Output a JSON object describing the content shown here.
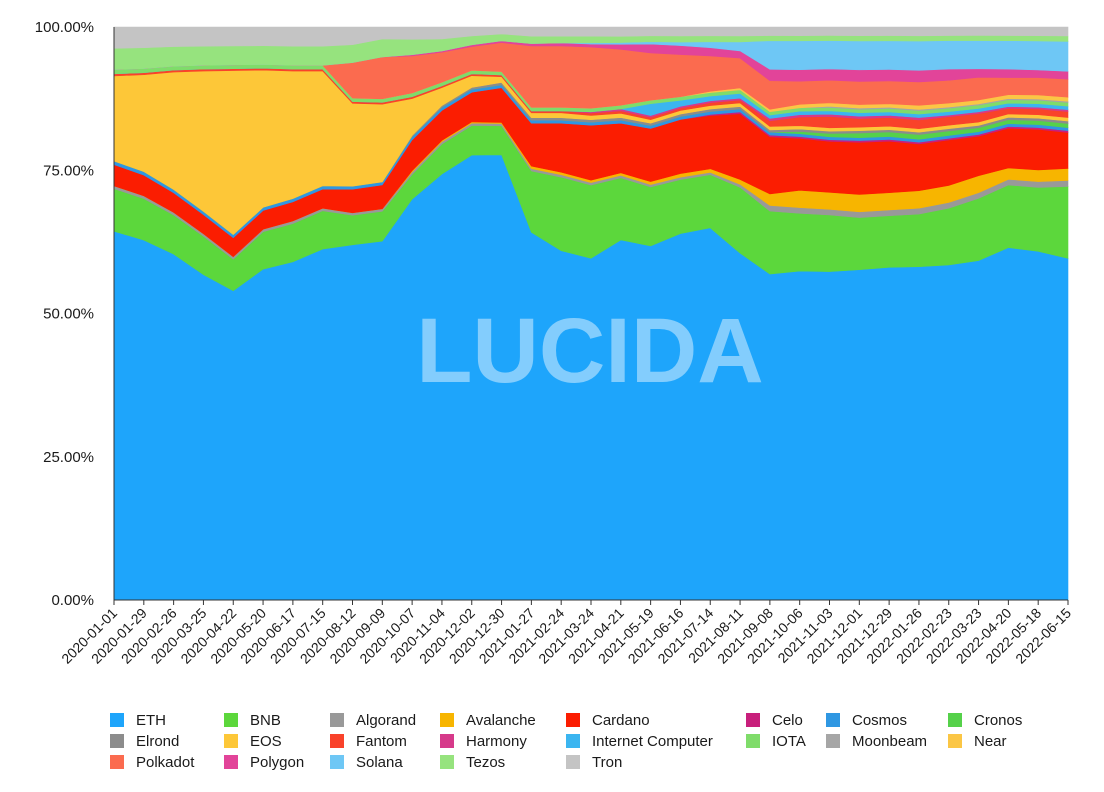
{
  "chart_data": {
    "type": "area",
    "stacked": true,
    "normalized": true,
    "title": "",
    "xlabel": "",
    "ylabel": "",
    "ylim": [
      0,
      100
    ],
    "y_ticks": [
      "0.00%",
      "25.00%",
      "50.00%",
      "75.00%",
      "100.00%"
    ],
    "x_ticks": [
      "2020-01-01",
      "2020-01-29",
      "2020-02-26",
      "2020-03-25",
      "2020-04-22",
      "2020-05-20",
      "2020-06-17",
      "2020-07-15",
      "2020-08-12",
      "2020-09-09",
      "2020-10-07",
      "2020-11-04",
      "2020-12-02",
      "2020-12-30",
      "2021-01-27",
      "2021-02-24",
      "2021-03-24",
      "2021-04-21",
      "2021-05-19",
      "2021-06-16",
      "2021-07-14",
      "2021-08-11",
      "2021-09-08",
      "2021-10-06",
      "2021-11-03",
      "2021-12-01",
      "2021-12-29",
      "2022-01-26",
      "2022-02-23",
      "2022-03-23",
      "2022-04-20",
      "2022-05-18",
      "2022-06-15"
    ],
    "watermark": "LUCIDA",
    "legend_position": "bottom",
    "series": [
      {
        "name": "ETH",
        "color": "#1ea5fb",
        "values": [
          52,
          52,
          53,
          51,
          49,
          53,
          53,
          55,
          60,
          60,
          65,
          71,
          75,
          77,
          60,
          57,
          56,
          58,
          60,
          61,
          63,
          58,
          57,
          57,
          58,
          57,
          58,
          57,
          59,
          60,
          62,
          60,
          57
        ]
      },
      {
        "name": "BNB",
        "color": "#5cd73c",
        "values": [
          6,
          6,
          6,
          6,
          5,
          6,
          6,
          6,
          5,
          5,
          4,
          5,
          5,
          5,
          10,
          12,
          12,
          10,
          10,
          9,
          9,
          11,
          11,
          10,
          10,
          9,
          9,
          9,
          10,
          11,
          11,
          11,
          12
        ]
      },
      {
        "name": "Algorand",
        "color": "#999999",
        "values": [
          0.4,
          0.4,
          0.4,
          0.4,
          0.4,
          0.4,
          0.4,
          0.4,
          0.4,
          0.4,
          0.4,
          0.4,
          0.4,
          0.4,
          0.4,
          0.4,
          0.4,
          0.4,
          0.4,
          0.4,
          0.4,
          0.5,
          1,
          1,
          1,
          1,
          1,
          1,
          1,
          1,
          1,
          1,
          1
        ]
      },
      {
        "name": "Avalanche",
        "color": "#f7b500",
        "values": [
          0,
          0,
          0,
          0,
          0,
          0,
          0,
          0,
          0,
          0,
          0.2,
          0.2,
          0.2,
          0.2,
          0.4,
          0.4,
          0.4,
          0.4,
          0.5,
          0.6,
          0.6,
          0.8,
          2,
          3,
          3,
          3,
          3,
          3,
          3,
          3,
          2,
          2,
          2
        ]
      },
      {
        "name": "Cardano",
        "color": "#fb1d01",
        "values": [
          3,
          3,
          3,
          3,
          3,
          3,
          3,
          3,
          4,
          4,
          5,
          5,
          5,
          6,
          7,
          8,
          9,
          8,
          9,
          9,
          9,
          11,
          10,
          9,
          9,
          9,
          9,
          8,
          8,
          7,
          7,
          7,
          6
        ]
      },
      {
        "name": "Celo",
        "color": "#c81f7c",
        "values": [
          0,
          0,
          0,
          0,
          0,
          0,
          0,
          0,
          0,
          0,
          0,
          0,
          0,
          0,
          0,
          0,
          0,
          0,
          0,
          0,
          0.2,
          0.3,
          0.3,
          0.3,
          0.3,
          0.3,
          0.3,
          0.3,
          0.3,
          0.3,
          0.3,
          0.3,
          0.3
        ]
      },
      {
        "name": "Cosmos",
        "color": "#2f97e2",
        "values": [
          0.5,
          0.5,
          0.5,
          0.5,
          0.5,
          0.5,
          0.5,
          0.5,
          0.5,
          0.5,
          0.5,
          0.5,
          0.5,
          0.5,
          0.5,
          0.5,
          0.5,
          0.5,
          0.5,
          0.5,
          0.5,
          0.5,
          0.5,
          0.5,
          0.5,
          0.5,
          0.5,
          0.5,
          0.5,
          0.5,
          0.5,
          0.5,
          0.5
        ]
      },
      {
        "name": "Cronos",
        "color": "#55d14a",
        "values": [
          0,
          0,
          0,
          0,
          0,
          0,
          0,
          0,
          0,
          0,
          0,
          0,
          0,
          0,
          0,
          0,
          0,
          0,
          0,
          0,
          0,
          0,
          0,
          0.4,
          0.6,
          0.8,
          0.8,
          0.8,
          0.8,
          0.7,
          0.7,
          0.7,
          0.7
        ]
      },
      {
        "name": "Elrond",
        "color": "#8c8c8c",
        "values": [
          0,
          0,
          0,
          0,
          0,
          0,
          0,
          0,
          0,
          0,
          0.2,
          0.3,
          0.3,
          0.4,
          0.4,
          0.4,
          0.4,
          0.4,
          0.4,
          0.4,
          0.4,
          0.4,
          0.4,
          0.4,
          0.4,
          0.4,
          0.4,
          0.4,
          0.4,
          0.4,
          0.4,
          0.4,
          0.4
        ]
      },
      {
        "name": "EOS",
        "color": "#fdc738",
        "values": [
          12,
          14,
          18,
          22,
          26,
          22,
          20,
          18,
          14,
          13,
          6,
          3,
          2,
          1,
          0.8,
          0.8,
          0.7,
          0.7,
          0.6,
          0.6,
          0.6,
          0.6,
          0.6,
          0.6,
          0.6,
          0.6,
          0.6,
          0.6,
          0.6,
          0.6,
          0.6,
          0.6,
          0.6
        ]
      },
      {
        "name": "Fantom",
        "color": "#f9422a",
        "values": [
          0.3,
          0.3,
          0.3,
          0.3,
          0.3,
          0.3,
          0.3,
          0.3,
          0.3,
          0.3,
          0.3,
          0.3,
          0.3,
          0.3,
          0.3,
          0.3,
          0.4,
          0.4,
          0.4,
          0.4,
          0.5,
          0.5,
          1,
          1.5,
          2,
          1.5,
          1.5,
          1.5,
          1.5,
          1.5,
          1,
          1,
          1
        ]
      },
      {
        "name": "Harmony",
        "color": "#d63a8a",
        "values": [
          0,
          0,
          0,
          0,
          0,
          0,
          0,
          0,
          0,
          0,
          0,
          0,
          0,
          0,
          0,
          0,
          0.2,
          0.3,
          0.3,
          0.3,
          0.3,
          0.3,
          0.4,
          0.4,
          0.4,
          0.4,
          0.4,
          0.4,
          0.3,
          0.3,
          0.3,
          0.3,
          0.3
        ]
      },
      {
        "name": "Internet Computer",
        "color": "#3bb5f0",
        "values": [
          0,
          0,
          0,
          0,
          0,
          0,
          0,
          0,
          0,
          0,
          0,
          0,
          0,
          0,
          0,
          0,
          0,
          0,
          2,
          1,
          0.8,
          0.8,
          0.6,
          0.6,
          0.6,
          0.6,
          0.6,
          0.6,
          0.6,
          0.6,
          0.6,
          0.6,
          0.6
        ]
      },
      {
        "name": "IOTA",
        "color": "#7fdc6a",
        "values": [
          0.6,
          0.6,
          0.6,
          0.6,
          0.6,
          0.6,
          0.6,
          0.6,
          0.6,
          0.6,
          0.6,
          0.6,
          0.6,
          0.6,
          0.6,
          0.6,
          0.6,
          0.6,
          0.6,
          0.6,
          0.6,
          0.6,
          0.6,
          0.6,
          0.6,
          0.6,
          0.6,
          0.6,
          0.6,
          0.6,
          0.6,
          0.6,
          0.6
        ]
      },
      {
        "name": "Moonbeam",
        "color": "#a6a6a6",
        "values": [
          0,
          0,
          0,
          0,
          0,
          0,
          0,
          0,
          0,
          0,
          0,
          0,
          0,
          0,
          0,
          0,
          0,
          0,
          0,
          0,
          0,
          0,
          0,
          0,
          0.2,
          0.2,
          0.2,
          0.2,
          0.2,
          0.2,
          0.2,
          0.2,
          0.2
        ]
      },
      {
        "name": "Near",
        "color": "#fbc645",
        "values": [
          0,
          0,
          0,
          0,
          0,
          0,
          0,
          0,
          0,
          0,
          0,
          0,
          0,
          0,
          0,
          0,
          0,
          0,
          0,
          0,
          0.2,
          0.3,
          0.4,
          0.6,
          0.6,
          0.6,
          0.6,
          0.7,
          0.7,
          0.7,
          0.7,
          0.7,
          0.7
        ]
      },
      {
        "name": "Polkadot",
        "color": "#fb6b4f",
        "values": [
          0,
          0,
          0,
          0,
          0,
          0,
          0,
          0,
          6,
          7,
          6,
          5,
          4,
          5,
          10,
          10,
          10,
          9,
          8,
          7,
          6,
          5,
          5,
          4,
          4,
          4,
          4,
          4,
          4,
          4,
          3,
          3,
          3
        ]
      },
      {
        "name": "Polygon",
        "color": "#e24499",
        "values": [
          0,
          0,
          0,
          0,
          0,
          0,
          0,
          0,
          0,
          0,
          0.2,
          0.2,
          0.3,
          0.3,
          0.4,
          0.5,
          0.5,
          0.8,
          1.5,
          1.5,
          1.4,
          1.2,
          2,
          2,
          2,
          2,
          2,
          2,
          2,
          1.5,
          1.5,
          1.3,
          1.3
        ]
      },
      {
        "name": "Solana",
        "color": "#6ec7f5",
        "values": [
          0,
          0,
          0,
          0,
          0,
          0,
          0,
          0,
          0,
          0,
          0,
          0,
          0,
          0,
          0,
          0,
          0.2,
          0.3,
          0.4,
          0.6,
          1,
          1.5,
          5,
          5,
          5,
          5,
          5,
          5,
          5,
          5,
          5,
          5,
          5
        ]
      },
      {
        "name": "Tezos",
        "color": "#96e37e",
        "values": [
          3,
          3,
          3,
          3,
          3,
          3,
          3,
          3,
          3,
          3,
          2.5,
          2,
          1.5,
          1.2,
          1.2,
          1.1,
          1.1,
          1,
          1,
          1,
          1,
          1,
          0.9,
          0.9,
          0.9,
          0.9,
          0.9,
          0.9,
          0.9,
          0.9,
          0.9,
          0.9,
          0.9
        ]
      },
      {
        "name": "Tron",
        "color": "#c4c4c4",
        "values": [
          3,
          3,
          3,
          3,
          3,
          3,
          3,
          3,
          3,
          2,
          2,
          2,
          1.5,
          1.2,
          1.5,
          1.5,
          1.5,
          1.5,
          1.5,
          1.5,
          1.5,
          1.5,
          1.5,
          1.5,
          1.5,
          1.5,
          1.5,
          1.5,
          1.5,
          1.5,
          1.5,
          1.5,
          1.5
        ]
      }
    ]
  }
}
